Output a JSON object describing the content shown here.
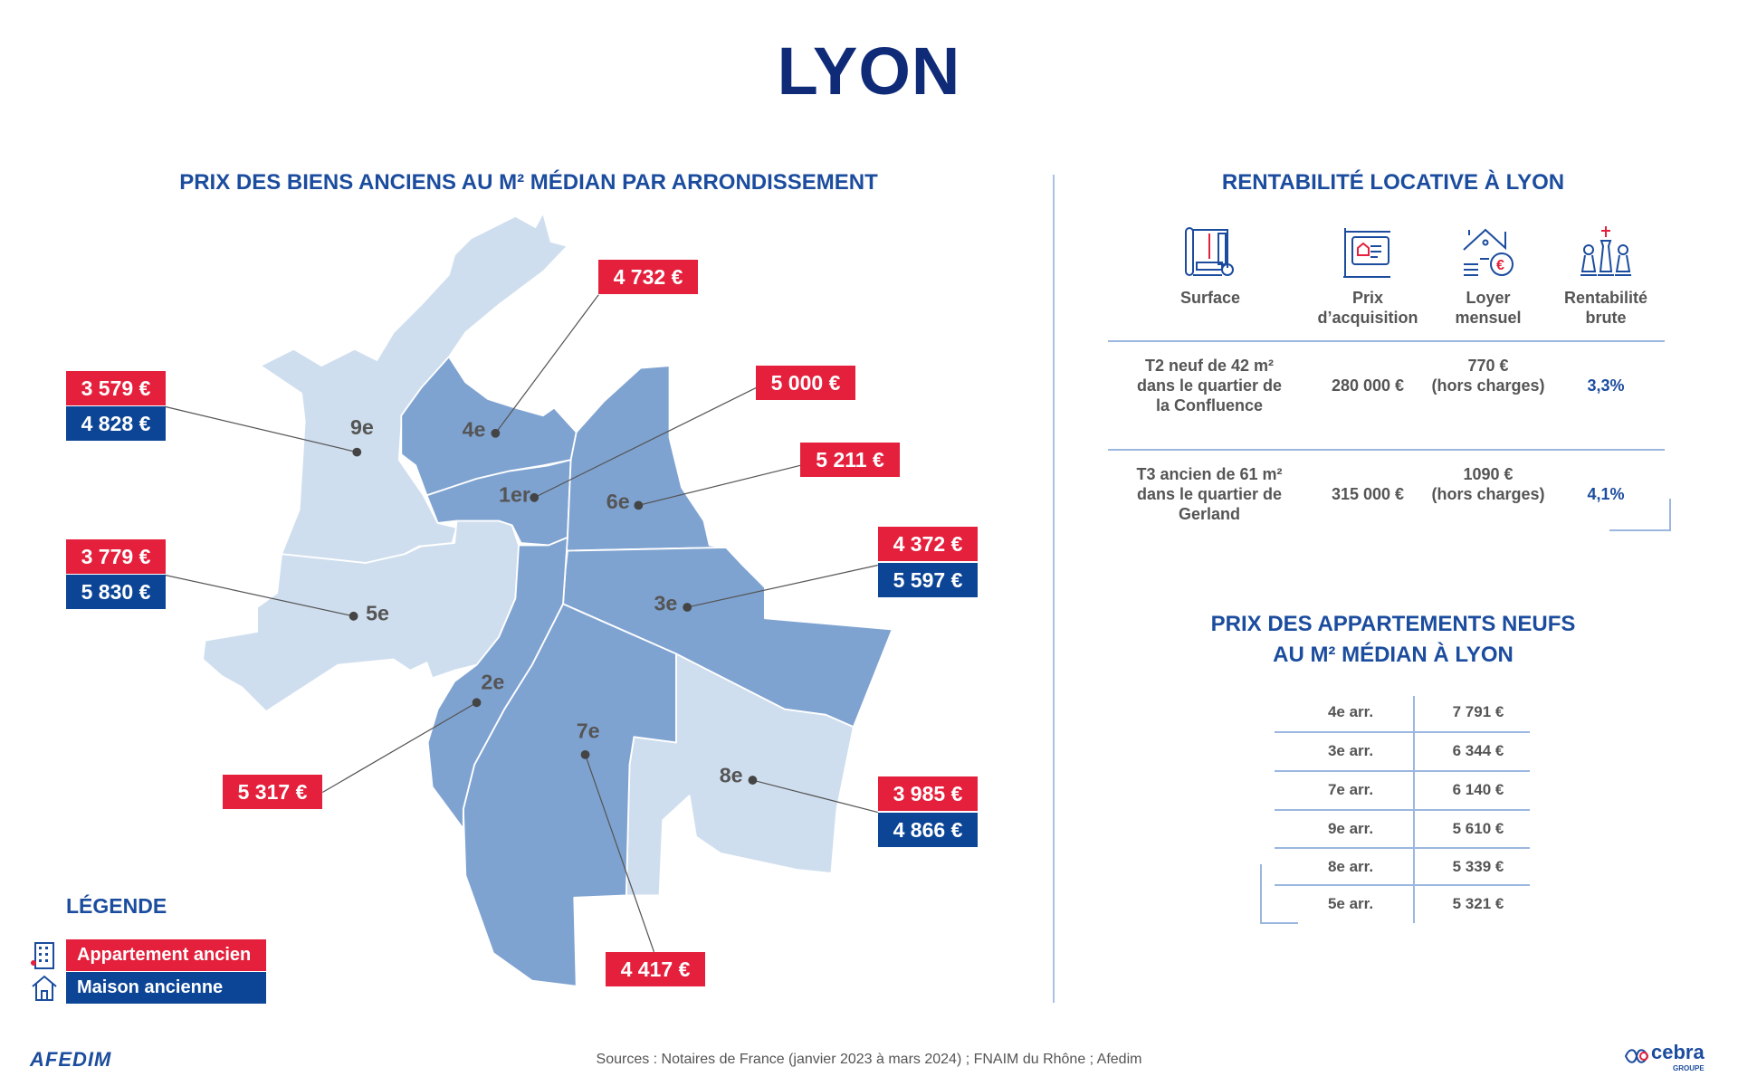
{
  "title": "LYON",
  "map_section": {
    "heading": "PRIX DES BIENS ANCIENS AU M² MÉDIAN PAR ARRONDISSEMENT",
    "districts": {
      "a1": {
        "label": "1er",
        "appartement": "5 000 €"
      },
      "a2": {
        "label": "2e",
        "appartement": "5 317 €"
      },
      "a3": {
        "label": "3e",
        "appartement": "4 372 €",
        "maison": "5 597 €"
      },
      "a4": {
        "label": "4e",
        "appartement": "4 732 €"
      },
      "a5": {
        "label": "5e",
        "appartement": "3 779 €",
        "maison": "5 830 €"
      },
      "a6": {
        "label": "6e",
        "appartement": "5 211 €"
      },
      "a7": {
        "label": "7e",
        "appartement": "4 417 €"
      },
      "a8": {
        "label": "8e",
        "appartement": "3 985 €",
        "maison": "4 866 €"
      },
      "a9": {
        "label": "9e",
        "appartement": "3 579 €",
        "maison": "4 828 €"
      }
    },
    "legend": {
      "title": "LÉGENDE",
      "appartement": "Appartement ancien",
      "maison": "Maison ancienne"
    }
  },
  "rentabilite": {
    "heading": "RENTABILITÉ LOCATIVE À LYON",
    "columns": [
      "Surface",
      "Prix d’acquisition",
      "Loyer mensuel",
      "Rentabilité brute"
    ],
    "rows": [
      {
        "surface": "T2 neuf de 42 m² dans le quartier de la Confluence",
        "prix": "280 000 €",
        "loyer": "770 €",
        "loyer_note": "(hors charges)",
        "rentabilite": "3,3%"
      },
      {
        "surface": "T3 ancien de 61 m² dans le quartier de Gerland",
        "prix": "315 000 €",
        "loyer": "1090 €",
        "loyer_note": "(hors charges)",
        "rentabilite": "4,1%"
      }
    ]
  },
  "neufs": {
    "heading_line1": "PRIX DES APPARTEMENTS NEUFS",
    "heading_line2": "AU M² MÉDIAN À LYON",
    "rows": [
      {
        "arr": "4e arr.",
        "prix": "7 791 €"
      },
      {
        "arr": "3e arr.",
        "prix": "6 344 €"
      },
      {
        "arr": "7e arr.",
        "prix": "6 140 €"
      },
      {
        "arr": "9e arr.",
        "prix": "5 610 €"
      },
      {
        "arr": "8e arr.",
        "prix": "5 339 €"
      },
      {
        "arr": "5e arr.",
        "prix": "5 321 €"
      }
    ]
  },
  "footer": {
    "sources": "Sources : Notaires de France (janvier 2023 à mars 2024) ; FNAIM du Rhône ; Afedim",
    "logo_left": "AFEDIM",
    "logo_right": "cebra GROUPE"
  },
  "colors": {
    "red": "#e4203c",
    "blue": "#0d4596",
    "map_dark": "#7fa3d1",
    "map_light": "#cfdeee"
  }
}
